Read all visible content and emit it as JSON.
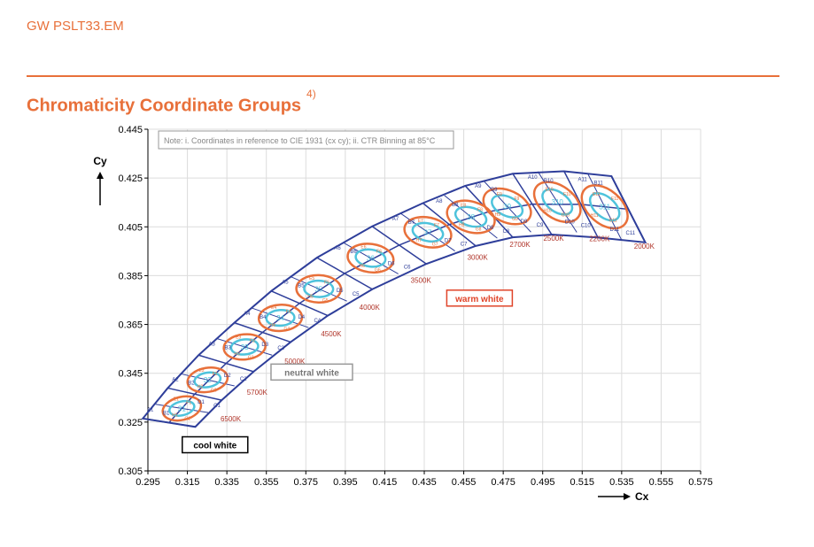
{
  "header": {
    "doc_id": "GW PSLT33.EM",
    "title": "Chromaticity Coordinate Groups",
    "footnote_ref": "4)"
  },
  "colors": {
    "accent": "#E8703A",
    "grid_outline": "#2E3E9A",
    "ellipse_outer": "#E8703A",
    "ellipse_inner": "#4EC3DC",
    "cct_label": "#B0352A",
    "warm_box": "#E0452A",
    "neutral_box": "#999999",
    "cool_box": "#000000"
  },
  "chart_data": {
    "type": "scatter",
    "xlabel": "Cx",
    "ylabel": "Cy",
    "xlim": [
      0.295,
      0.575
    ],
    "ylim": [
      0.305,
      0.445
    ],
    "x_ticks": [
      "0.295",
      "0.315",
      "0.335",
      "0.355",
      "0.375",
      "0.395",
      "0.415",
      "0.435",
      "0.455",
      "0.475",
      "0.495",
      "0.515",
      "0.535",
      "0.555",
      "0.575"
    ],
    "y_ticks": [
      "0.305",
      "0.325",
      "0.345",
      "0.365",
      "0.385",
      "0.405",
      "0.425",
      "0.445"
    ],
    "grid": true,
    "note": "Note: i. Coordinates in reference to CIE 1931 (cx cy); ii. CTR Binning at 85°C",
    "regions": [
      {
        "label": "warm white",
        "x": 0.463,
        "y": 0.3758
      },
      {
        "label": "neutral white",
        "x": 0.378,
        "y": 0.3455
      },
      {
        "label": "cool white",
        "x": 0.329,
        "y": 0.3157
      }
    ],
    "groups": [
      {
        "name": "31",
        "cct": "6500K",
        "cx": 0.3122,
        "cy": 0.3306,
        "bins": [
          "A1",
          "B1",
          "C1",
          "D1"
        ]
      },
      {
        "name": "32",
        "cct": "5700K",
        "cx": 0.3252,
        "cy": 0.3423,
        "bins": [
          "A2",
          "B2",
          "C2",
          "D2"
        ]
      },
      {
        "name": "33",
        "cct": "5000K",
        "cx": 0.344,
        "cy": 0.3558,
        "bins": [
          "A3",
          "B3",
          "C3",
          "D3"
        ]
      },
      {
        "name": "34",
        "cct": "4500K",
        "cx": 0.3621,
        "cy": 0.3677,
        "bins": [
          "A4",
          "B4",
          "C4",
          "D4"
        ]
      },
      {
        "name": "35",
        "cct": "4000K",
        "cx": 0.3815,
        "cy": 0.3796,
        "bins": [
          "A5",
          "B5",
          "C5",
          "D5"
        ]
      },
      {
        "name": "36",
        "cct": "3500K",
        "cx": 0.4078,
        "cy": 0.3922,
        "bins": [
          "A6",
          "B6",
          "C6",
          "D6"
        ]
      },
      {
        "name": "37",
        "cct": "3000K",
        "cx": 0.4368,
        "cy": 0.4028,
        "bins": [
          "A7",
          "B7",
          "C7",
          "D7"
        ]
      },
      {
        "name": "38",
        "cct": "2700K",
        "cx": 0.4586,
        "cy": 0.4091,
        "bins": [
          "A8",
          "B8",
          "C8",
          "D8"
        ]
      },
      {
        "name": "39",
        "cct": "2500K",
        "cx": 0.477,
        "cy": 0.4134,
        "bins": [
          "A9",
          "B9",
          "C9",
          "D9"
        ]
      },
      {
        "name": "310",
        "cct": "2200K",
        "cx": 0.5024,
        "cy": 0.4152,
        "bins": [
          "A10",
          "B10",
          "C10",
          "D10"
        ]
      },
      {
        "name": "311",
        "cct": "2000K",
        "cx": 0.5264,
        "cy": 0.4132,
        "bins": [
          "A11",
          "B11",
          "C11",
          "D11"
        ]
      }
    ],
    "sub_labels": [
      "E",
      "F",
      "G",
      "H"
    ]
  }
}
